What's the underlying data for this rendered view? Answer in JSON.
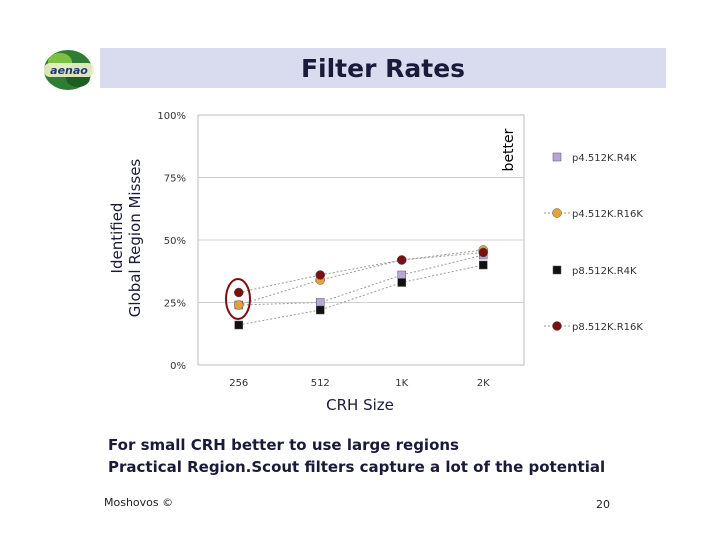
{
  "slide": {
    "title": "Filter Rates",
    "logo_text": "aenao",
    "ylabel_line1": "Identified",
    "ylabel_line2": "Global Region Misses",
    "better_label": "better",
    "xlabel": "CRH Size",
    "note1": "For small CRH better to use large regions",
    "note2": "Practical Region.Scout filters capture a lot of the potential",
    "footer_author": "Moshovos ©",
    "page_number": "20"
  },
  "chart_data": {
    "type": "line",
    "categories": [
      "256",
      "512",
      "1K",
      "2K"
    ],
    "yticks": [
      "0%",
      "25%",
      "50%",
      "75%",
      "100%"
    ],
    "ylim": [
      0,
      100
    ],
    "grid": true,
    "legend_position": "right",
    "series": [
      {
        "name": "p4.512K.R4K",
        "values": [
          24,
          25,
          36,
          44
        ],
        "color": "#b8a6d8",
        "marker": "square"
      },
      {
        "name": "p4.512K.R16K",
        "values": [
          24,
          34,
          42,
          46
        ],
        "color": "#e3a23a",
        "marker": "circle"
      },
      {
        "name": "p8.512K.R4K",
        "values": [
          16,
          22,
          33,
          40
        ],
        "color": "#111111",
        "marker": "square"
      },
      {
        "name": "p8.512K.R16K",
        "values": [
          29,
          36,
          42,
          45
        ],
        "color": "#7a1010",
        "marker": "circle"
      }
    ]
  }
}
